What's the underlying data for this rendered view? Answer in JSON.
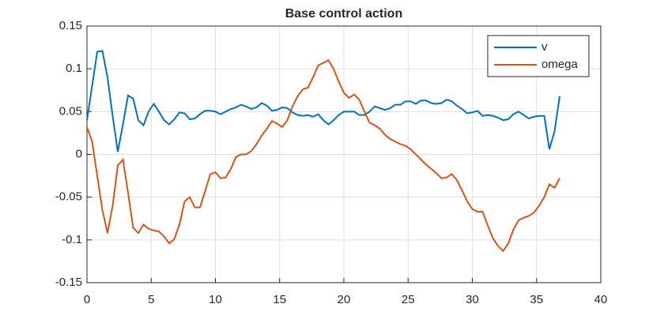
{
  "chart_data": {
    "type": "line",
    "title": "Base control action",
    "x": [
      0,
      0.4,
      0.8,
      1.2,
      1.6,
      2.0,
      2.4,
      2.8,
      3.2,
      3.6,
      4.0,
      4.4,
      4.8,
      5.2,
      5.6,
      6.0,
      6.4,
      6.8,
      7.2,
      7.6,
      8.0,
      8.4,
      8.8,
      9.2,
      9.6,
      10,
      10.4,
      10.8,
      11.2,
      11.6,
      12,
      12.4,
      12.8,
      13.2,
      13.6,
      14,
      14.4,
      14.8,
      15.2,
      15.6,
      16,
      16.4,
      16.8,
      17.2,
      17.6,
      18,
      18.4,
      18.8,
      19.2,
      19.6,
      20,
      20.4,
      20.8,
      21.2,
      21.6,
      22,
      22.4,
      22.8,
      23.2,
      23.6,
      24,
      24.4,
      24.8,
      25.2,
      25.6,
      26,
      26.4,
      26.8,
      27.2,
      27.6,
      28,
      28.4,
      28.8,
      29.2,
      29.6,
      30,
      30.4,
      30.8,
      31.2,
      31.6,
      32,
      32.4,
      32.8,
      33.2,
      33.6,
      34,
      34.4,
      34.8,
      35.2,
      35.6,
      36,
      36.4,
      36.8
    ],
    "series": [
      {
        "name": "v",
        "color": "#0072bd",
        "values": [
          0.04,
          0.08,
          0.12,
          0.121,
          0.09,
          0.045,
          0.003,
          0.035,
          0.069,
          0.065,
          0.04,
          0.034,
          0.05,
          0.059,
          0.05,
          0.04,
          0.035,
          0.041,
          0.049,
          0.048,
          0.041,
          0.042,
          0.047,
          0.051,
          0.051,
          0.05,
          0.047,
          0.05,
          0.053,
          0.055,
          0.058,
          0.056,
          0.053,
          0.055,
          0.06,
          0.057,
          0.051,
          0.052,
          0.055,
          0.054,
          0.049,
          0.046,
          0.045,
          0.046,
          0.044,
          0.047,
          0.04,
          0.035,
          0.04,
          0.046,
          0.05,
          0.05,
          0.05,
          0.046,
          0.046,
          0.05,
          0.056,
          0.054,
          0.052,
          0.054,
          0.058,
          0.058,
          0.062,
          0.062,
          0.059,
          0.063,
          0.063,
          0.06,
          0.059,
          0.06,
          0.064,
          0.062,
          0.057,
          0.053,
          0.048,
          0.049,
          0.051,
          0.045,
          0.046,
          0.045,
          0.043,
          0.04,
          0.041,
          0.047,
          0.05,
          0.046,
          0.042,
          0.044,
          0.045,
          0.045,
          0.006,
          0.027,
          0.068
        ]
      },
      {
        "name": "omega",
        "color": "#d95319",
        "values": [
          0.032,
          0.015,
          -0.025,
          -0.065,
          -0.092,
          -0.06,
          -0.013,
          -0.006,
          -0.045,
          -0.086,
          -0.092,
          -0.082,
          -0.087,
          -0.089,
          -0.09,
          -0.096,
          -0.104,
          -0.099,
          -0.082,
          -0.055,
          -0.05,
          -0.062,
          -0.062,
          -0.043,
          -0.023,
          -0.021,
          -0.028,
          -0.027,
          -0.017,
          -0.003,
          0,
          0,
          0.004,
          0.012,
          0.022,
          0.03,
          0.039,
          0.036,
          0.032,
          0.04,
          0.056,
          0.068,
          0.076,
          0.078,
          0.09,
          0.104,
          0.107,
          0.11,
          0.1,
          0.085,
          0.072,
          0.066,
          0.07,
          0.064,
          0.05,
          0.037,
          0.034,
          0.03,
          0.023,
          0.018,
          0.015,
          0.012,
          0.01,
          0.006,
          0.0,
          -0.006,
          -0.012,
          -0.017,
          -0.022,
          -0.028,
          -0.027,
          -0.023,
          -0.03,
          -0.042,
          -0.055,
          -0.064,
          -0.067,
          -0.067,
          -0.083,
          -0.098,
          -0.107,
          -0.113,
          -0.104,
          -0.088,
          -0.077,
          -0.074,
          -0.072,
          -0.068,
          -0.06,
          -0.05,
          -0.035,
          -0.039,
          -0.028
        ]
      }
    ],
    "xlim": [
      0,
      40
    ],
    "xticks": [
      0,
      5,
      10,
      15,
      20,
      25,
      30,
      35,
      40
    ],
    "ylim": [
      -0.15,
      0.15
    ],
    "yticks": [
      -0.15,
      -0.1,
      -0.05,
      0,
      0.05,
      0.1,
      0.15
    ],
    "grid": true,
    "legend": "northeast"
  }
}
